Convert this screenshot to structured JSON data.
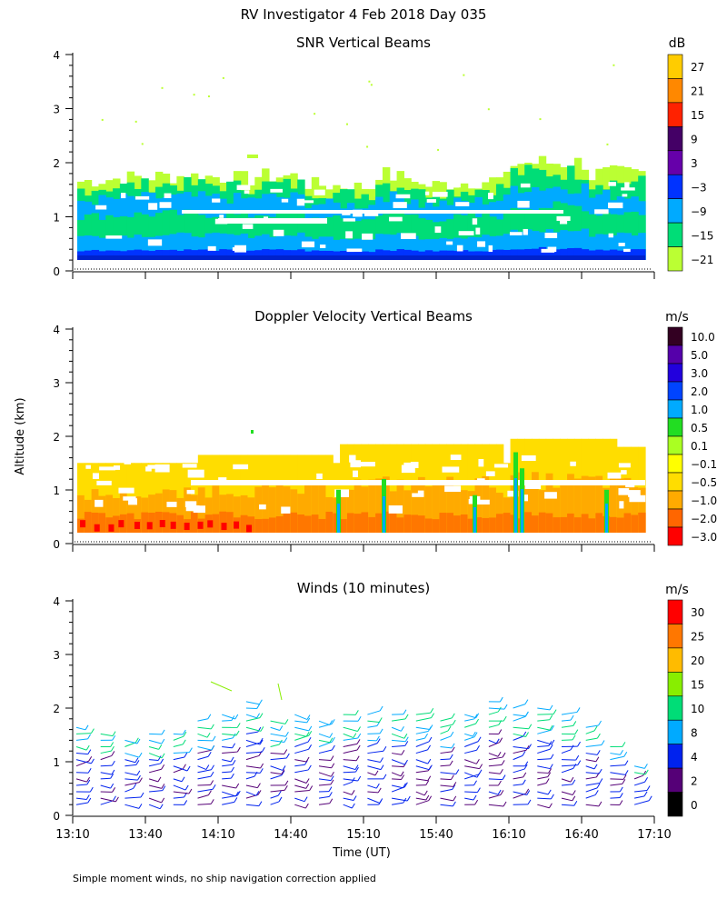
{
  "page": {
    "title": "RV Investigator   4 Feb 2018 Day 035",
    "ylabel": "Altitude (km)",
    "xlabel": "Time (UT)",
    "footnote": "Simple moment winds, no ship navigation correction applied"
  },
  "chart_data": [
    {
      "type": "heatmap",
      "title": "SNR Vertical Beams",
      "ylim": [
        0,
        4
      ],
      "yticks": [
        "0",
        "1",
        "2",
        "3",
        "4"
      ],
      "xlim": [
        "13:10",
        "17:10"
      ],
      "colorbar": {
        "unit": "dB",
        "labels": [
          "27",
          "21",
          "15",
          "9",
          "3",
          "−3",
          "−9",
          "−15",
          "−21"
        ],
        "colors": [
          "#ffcc00",
          "#ff8800",
          "#ff2200",
          "#440066",
          "#6600aa",
          "#0033ff",
          "#00aaff",
          "#00dd77",
          "#bbff33"
        ]
      }
    },
    {
      "type": "heatmap",
      "title": "Doppler Velocity Vertical Beams",
      "ylim": [
        0,
        4
      ],
      "yticks": [
        "0",
        "1",
        "2",
        "3",
        "4"
      ],
      "xlim": [
        "13:10",
        "17:10"
      ],
      "colorbar": {
        "unit": "m/s",
        "labels": [
          "10.0",
          "5.0",
          "3.0",
          "2.0",
          "1.0",
          "0.5",
          "0.1",
          "−0.1",
          "−0.5",
          "−1.0",
          "−2.0",
          "−3.0"
        ],
        "colors": [
          "#330022",
          "#5500aa",
          "#2200dd",
          "#0044ff",
          "#00aaff",
          "#22dd22",
          "#aaff22",
          "#ffff00",
          "#ffdd00",
          "#ffaa00",
          "#ff6600",
          "#ff0000"
        ]
      }
    },
    {
      "type": "scatter",
      "title": "Winds (10 minutes)",
      "ylim": [
        0,
        4
      ],
      "yticks": [
        "0",
        "1",
        "2",
        "3",
        "4"
      ],
      "xticklabels": [
        "13:10",
        "13:40",
        "14:10",
        "14:40",
        "15:10",
        "15:40",
        "16:10",
        "16:40",
        "17:10"
      ],
      "colorbar": {
        "unit": "m/s",
        "labels": [
          "30",
          "25",
          "20",
          "15",
          "10",
          "8",
          "4",
          "2",
          "0"
        ],
        "colors": [
          "#ff0000",
          "#ff7700",
          "#ffbb00",
          "#88ee00",
          "#00dd77",
          "#00aaff",
          "#0022ee",
          "#550077",
          "#000000"
        ]
      }
    }
  ]
}
